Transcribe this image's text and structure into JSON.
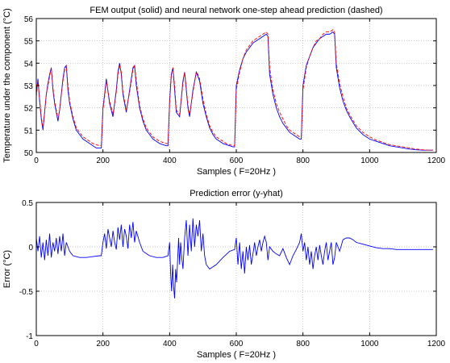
{
  "chart_data": [
    {
      "type": "line",
      "title": "FEM output (solid) and neural network one-step ahead prediction (dashed)",
      "xlabel": "Samples ( F=20Hz )",
      "ylabel": "Temperature under the component (°C)",
      "xlim": [
        0,
        1200
      ],
      "ylim": [
        50,
        56
      ],
      "xticks": [
        0,
        200,
        400,
        600,
        800,
        1000,
        1200
      ],
      "yticks": [
        50,
        51,
        52,
        53,
        54,
        55,
        56
      ],
      "grid": true,
      "series": [
        {
          "style": "solid",
          "color": "#0000ff",
          "x": [
            0,
            5,
            10,
            15,
            20,
            25,
            30,
            35,
            40,
            45,
            50,
            55,
            60,
            65,
            70,
            75,
            80,
            85,
            90,
            95,
            100,
            110,
            120,
            130,
            140,
            150,
            160,
            170,
            180,
            190,
            195,
            200,
            205,
            210,
            220,
            230,
            240,
            245,
            250,
            255,
            260,
            270,
            280,
            290,
            295,
            300,
            310,
            320,
            330,
            340,
            350,
            360,
            370,
            380,
            390,
            395,
            400,
            405,
            410,
            415,
            420,
            430,
            440,
            445,
            450,
            455,
            460,
            470,
            480,
            485,
            490,
            500,
            510,
            520,
            530,
            540,
            550,
            560,
            570,
            580,
            590,
            595,
            600,
            610,
            620,
            630,
            640,
            650,
            660,
            670,
            680,
            690,
            695,
            700,
            710,
            720,
            730,
            740,
            750,
            760,
            770,
            780,
            790,
            795,
            800,
            810,
            820,
            830,
            840,
            850,
            860,
            870,
            880,
            890,
            895,
            900,
            910,
            920,
            930,
            940,
            960,
            980,
            1000,
            1020,
            1040,
            1060,
            1080,
            1100,
            1120,
            1140,
            1160,
            1180,
            1190
          ],
          "values": [
            52.6,
            53.3,
            52.3,
            51.5,
            51.0,
            51.8,
            52.6,
            53.1,
            53.5,
            53.8,
            52.8,
            52.2,
            51.8,
            51.4,
            51.9,
            52.6,
            53.3,
            53.8,
            53.9,
            52.8,
            52.2,
            51.5,
            51.0,
            50.8,
            50.6,
            50.5,
            50.4,
            50.3,
            50.2,
            50.2,
            50.2,
            52.0,
            52.6,
            53.3,
            52.2,
            51.6,
            52.8,
            53.6,
            54.0,
            53.5,
            52.6,
            51.8,
            52.8,
            53.8,
            53.9,
            53.0,
            52.0,
            51.4,
            51.0,
            50.8,
            50.6,
            50.5,
            50.4,
            50.35,
            50.3,
            50.3,
            52.3,
            53.5,
            53.8,
            52.8,
            51.8,
            51.6,
            53.2,
            53.6,
            52.8,
            52.0,
            51.6,
            52.8,
            53.6,
            53.4,
            53.2,
            52.2,
            51.6,
            51.1,
            50.8,
            50.6,
            50.5,
            50.4,
            50.35,
            50.3,
            50.25,
            50.25,
            53.0,
            53.7,
            54.2,
            54.5,
            54.7,
            54.9,
            55.0,
            55.1,
            55.2,
            55.3,
            55.2,
            53.5,
            52.6,
            52.0,
            51.6,
            51.3,
            51.1,
            50.9,
            50.8,
            50.7,
            50.6,
            50.6,
            53.0,
            53.9,
            54.3,
            54.7,
            54.9,
            55.1,
            55.2,
            55.3,
            55.3,
            55.4,
            55.3,
            53.8,
            52.9,
            52.3,
            51.9,
            51.6,
            51.1,
            50.8,
            50.6,
            50.5,
            50.4,
            50.3,
            50.25,
            50.2,
            50.15,
            50.12,
            50.1,
            50.1,
            50.1
          ]
        },
        {
          "style": "dashed",
          "color": "#ff0000",
          "x": [
            0,
            5,
            10,
            15,
            20,
            25,
            30,
            35,
            40,
            45,
            50,
            55,
            60,
            65,
            70,
            75,
            80,
            85,
            90,
            95,
            100,
            110,
            120,
            130,
            140,
            150,
            160,
            170,
            180,
            190,
            195,
            200,
            205,
            210,
            220,
            230,
            240,
            245,
            250,
            255,
            260,
            270,
            280,
            290,
            295,
            300,
            310,
            320,
            330,
            340,
            350,
            360,
            370,
            380,
            390,
            395,
            400,
            405,
            410,
            415,
            420,
            430,
            440,
            445,
            450,
            455,
            460,
            470,
            480,
            485,
            490,
            500,
            510,
            520,
            530,
            540,
            550,
            560,
            570,
            580,
            590,
            595,
            600,
            610,
            620,
            630,
            640,
            650,
            660,
            670,
            680,
            690,
            695,
            700,
            710,
            720,
            730,
            740,
            750,
            760,
            770,
            780,
            790,
            795,
            800,
            810,
            820,
            830,
            840,
            850,
            860,
            870,
            880,
            890,
            895,
            900,
            910,
            920,
            930,
            940,
            960,
            980,
            1000,
            1020,
            1040,
            1060,
            1080,
            1100,
            1120,
            1140,
            1160,
            1180,
            1190
          ],
          "values": [
            52.5,
            53.2,
            52.4,
            51.6,
            51.1,
            51.8,
            52.6,
            53.0,
            53.4,
            53.8,
            52.9,
            52.3,
            51.9,
            51.5,
            51.9,
            52.6,
            53.2,
            53.7,
            53.9,
            53.0,
            52.3,
            51.6,
            51.1,
            50.9,
            50.7,
            50.6,
            50.5,
            50.4,
            50.35,
            50.3,
            50.3,
            51.9,
            52.5,
            53.2,
            52.3,
            51.7,
            52.7,
            53.5,
            53.9,
            53.6,
            52.7,
            51.9,
            52.7,
            53.7,
            53.9,
            53.2,
            52.1,
            51.5,
            51.1,
            50.9,
            50.7,
            50.6,
            50.5,
            50.45,
            50.4,
            50.4,
            52.2,
            53.4,
            53.8,
            53.0,
            51.9,
            51.7,
            53.1,
            53.6,
            52.9,
            52.1,
            51.7,
            52.7,
            53.6,
            53.5,
            53.3,
            52.4,
            51.7,
            51.2,
            50.9,
            50.7,
            50.6,
            50.5,
            50.4,
            50.35,
            50.3,
            50.3,
            52.8,
            53.6,
            54.2,
            54.6,
            54.8,
            55.0,
            55.1,
            55.2,
            55.3,
            55.4,
            55.3,
            53.8,
            52.8,
            52.2,
            51.8,
            51.5,
            51.2,
            51.0,
            50.9,
            50.8,
            50.7,
            50.7,
            52.8,
            53.8,
            54.3,
            54.7,
            55.0,
            55.1,
            55.3,
            55.4,
            55.4,
            55.5,
            55.4,
            54.0,
            53.1,
            52.5,
            52.0,
            51.7,
            51.2,
            50.9,
            50.7,
            50.55,
            50.45,
            50.35,
            50.3,
            50.25,
            50.2,
            50.15,
            50.12,
            50.1,
            50.1
          ]
        }
      ]
    },
    {
      "type": "line",
      "title": "Prediction error (y-yhat)",
      "xlabel": "Samples ( F=20Hz )",
      "ylabel": "Error (°C)",
      "xlim": [
        0,
        1200
      ],
      "ylim": [
        -1,
        0.5
      ],
      "xticks": [
        0,
        200,
        400,
        600,
        800,
        1000,
        1200
      ],
      "yticks": [
        -1,
        -0.5,
        0,
        0.5
      ],
      "ytick_labels": [
        "-1",
        "-0.5",
        "0",
        "0.5"
      ],
      "grid": true,
      "series": [
        {
          "style": "solid",
          "color": "#0000ff",
          "x": [
            0,
            5,
            10,
            15,
            20,
            25,
            30,
            35,
            40,
            45,
            50,
            55,
            60,
            65,
            70,
            75,
            80,
            85,
            90,
            95,
            100,
            110,
            130,
            150,
            170,
            190,
            195,
            200,
            205,
            210,
            215,
            220,
            225,
            230,
            235,
            240,
            245,
            250,
            255,
            260,
            265,
            270,
            275,
            280,
            285,
            290,
            295,
            300,
            310,
            320,
            340,
            360,
            380,
            395,
            400,
            403,
            406,
            409,
            412,
            415,
            418,
            421,
            424,
            427,
            430,
            433,
            436,
            440,
            445,
            450,
            455,
            460,
            465,
            470,
            475,
            480,
            485,
            490,
            495,
            500,
            505,
            510,
            520,
            540,
            560,
            580,
            595,
            600,
            605,
            610,
            615,
            620,
            625,
            630,
            635,
            640,
            645,
            650,
            655,
            660,
            665,
            670,
            675,
            680,
            685,
            690,
            695,
            700,
            710,
            720,
            730,
            740,
            750,
            760,
            770,
            780,
            790,
            795,
            800,
            805,
            810,
            815,
            820,
            825,
            830,
            835,
            840,
            845,
            850,
            855,
            860,
            865,
            870,
            875,
            880,
            885,
            890,
            895,
            900,
            910,
            920,
            930,
            940,
            950,
            960,
            980,
            1000,
            1020,
            1040,
            1060,
            1080,
            1100,
            1120,
            1140,
            1160,
            1180,
            1190
          ],
          "values": [
            0.1,
            -0.05,
            0.12,
            -0.12,
            0.05,
            -0.15,
            0.08,
            -0.1,
            0.15,
            -0.12,
            0.05,
            -0.05,
            0.1,
            -0.08,
            0.12,
            -0.05,
            0.15,
            -0.1,
            0.05,
            0.0,
            -0.05,
            -0.1,
            -0.12,
            -0.12,
            -0.11,
            -0.1,
            -0.1,
            0.05,
            0.15,
            -0.02,
            0.2,
            0.1,
            0.0,
            0.18,
            0.05,
            -0.03,
            0.22,
            0.08,
            0.25,
            0.0,
            0.2,
            0.12,
            -0.02,
            0.25,
            0.1,
            0.28,
            0.05,
            0.18,
            0.05,
            -0.05,
            -0.1,
            -0.12,
            -0.12,
            -0.1,
            0.05,
            -0.3,
            -0.5,
            -0.2,
            -0.45,
            -0.58,
            -0.25,
            -0.4,
            -0.15,
            0.1,
            -0.2,
            0.05,
            -0.1,
            -0.25,
            0.1,
            0.3,
            -0.1,
            0.25,
            -0.05,
            0.32,
            0.0,
            0.25,
            0.12,
            0.3,
            -0.05,
            0.15,
            -0.1,
            -0.2,
            -0.25,
            -0.2,
            -0.12,
            -0.05,
            -0.03,
            0.1,
            -0.2,
            0.05,
            -0.25,
            -0.05,
            -0.3,
            0.0,
            -0.15,
            0.02,
            -0.2,
            -0.08,
            0.05,
            -0.1,
            0.0,
            0.08,
            -0.05,
            0.05,
            0.12,
            0.05,
            -0.15,
            0.0,
            -0.05,
            -0.08,
            -0.1,
            -0.02,
            -0.12,
            -0.2,
            -0.1,
            -0.03,
            0.05,
            0.15,
            -0.05,
            0.05,
            -0.15,
            0.0,
            -0.2,
            -0.05,
            -0.25,
            -0.1,
            0.0,
            -0.15,
            0.02,
            -0.1,
            -0.2,
            -0.05,
            0.05,
            -0.15,
            -0.05,
            0.05,
            -0.2,
            -0.12,
            0.05,
            -0.05,
            0.08,
            0.1,
            0.1,
            0.08,
            0.05,
            0.03,
            0.01,
            -0.01,
            -0.02,
            -0.02,
            -0.03,
            -0.03,
            -0.03,
            -0.03,
            -0.03,
            -0.03,
            -0.03
          ]
        }
      ]
    }
  ]
}
